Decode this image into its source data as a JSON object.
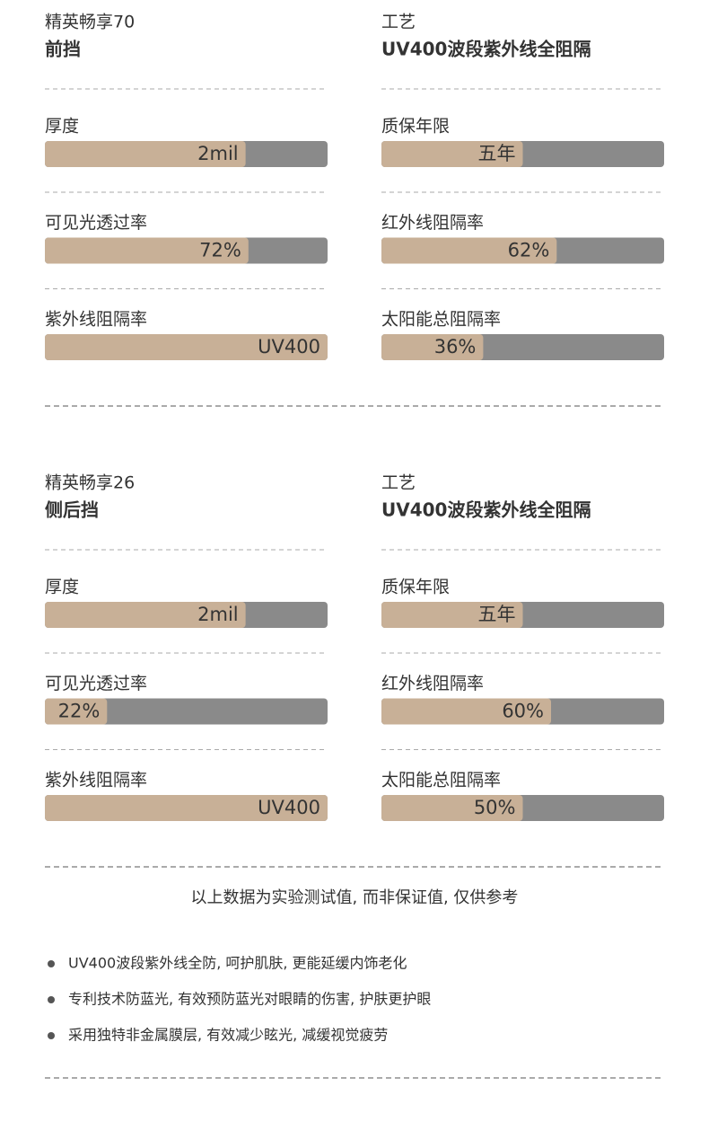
{
  "sections": [
    {
      "model": "精英畅享70",
      "position": "前挡",
      "craft_label": "工艺",
      "craft": "UV400波段紫外线全阻隔",
      "specs": [
        {
          "label": "厚度",
          "text": "2mil",
          "level": 71
        },
        {
          "label": "质保年限",
          "text": "五年",
          "level": 50
        },
        {
          "label": "可见光透过率",
          "text": "72%",
          "level": 72
        },
        {
          "label": "红外线阻隔率",
          "text": "62%",
          "level": 62
        },
        {
          "label": "紫外线阻隔率",
          "text": "UV400",
          "level": 100
        },
        {
          "label": "太阳能总阻隔率",
          "text": "36%",
          "level": 36
        }
      ]
    },
    {
      "model": "精英畅享26",
      "position": "侧后挡",
      "craft_label": "工艺",
      "craft": "UV400波段紫外线全阻隔",
      "specs": [
        {
          "label": "厚度",
          "text": "2mil",
          "level": 71
        },
        {
          "label": "质保年限",
          "text": "五年",
          "level": 50
        },
        {
          "label": "可见光透过率",
          "text": "22%",
          "level": 22
        },
        {
          "label": "红外线阻隔率",
          "text": "60%",
          "level": 60
        },
        {
          "label": "紫外线阻隔率",
          "text": "UV400",
          "level": 100
        },
        {
          "label": "太阳能总阻隔率",
          "text": "50%",
          "level": 50
        }
      ]
    }
  ],
  "note": "以上数据为实验测试值, 而非保证值, 仅供参考",
  "bullets": [
    "UV400波段紫外线全防, 呵护肌肤, 更能延缓内饰老化",
    "专利技术防蓝光, 有效预防蓝光对眼睛的伤害, 护肤更护眼",
    "采用独特非金属膜层, 有效减少眩光, 减缓视觉疲劳"
  ]
}
